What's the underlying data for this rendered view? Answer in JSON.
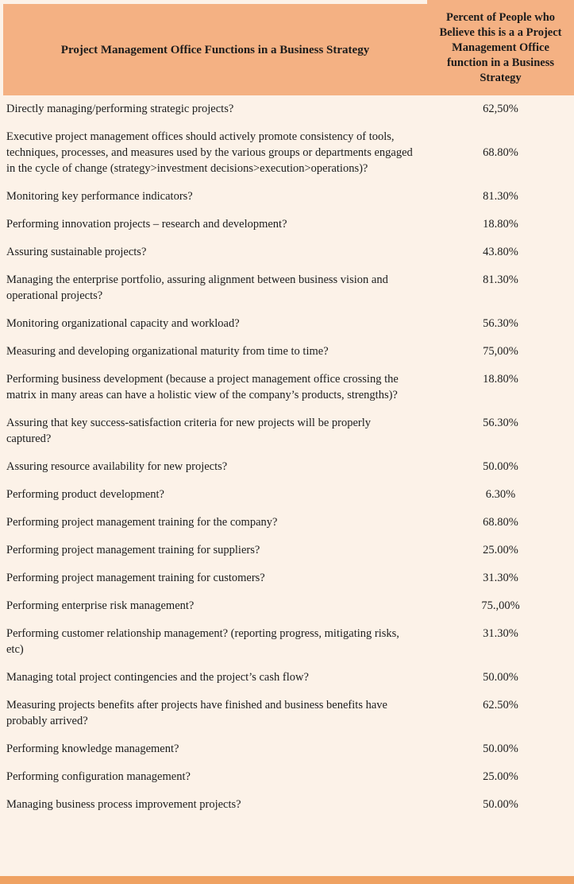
{
  "chart_data": {
    "type": "table",
    "columns": [
      "Project Management Office Functions in a Business Strategy",
      "Percent of People who Believe this is a a Project Management Office function in a Business Strategy"
    ],
    "rows": [
      [
        "Directly managing/performing strategic projects?",
        "62,50%"
      ],
      [
        "Executive project management offices should actively promote consistency of tools, techniques, processes, and measures used by the various groups or departments engaged in the cycle of change (strategy>investment decisions>execution>operations)?",
        "68.80%"
      ],
      [
        "Monitoring key performance indicators?",
        "81.30%"
      ],
      [
        "Performing innovation projects – research and development?",
        "18.80%"
      ],
      [
        "Assuring sustainable projects?",
        "43.80%"
      ],
      [
        "Managing the enterprise portfolio, assuring alignment between business vision and operational projects?",
        "81.30%"
      ],
      [
        "Monitoring organizational capacity and workload?",
        "56.30%"
      ],
      [
        "Measuring and developing organizational maturity from time to time?",
        "75,00%"
      ],
      [
        "Performing business development (because a project management office crossing the matrix in many areas can have a holistic view of the company’s products, strengths)?",
        "18.80%"
      ],
      [
        "Assuring that key success-satisfaction criteria for new projects will be properly captured?",
        "56.30%"
      ],
      [
        "Assuring resource availability for new projects?",
        "50.00%"
      ],
      [
        "Performing product development?",
        "6.30%"
      ],
      [
        "Performing project management training for the company?",
        "68.80%"
      ],
      [
        "Performing project management training for suppliers?",
        "25.00%"
      ],
      [
        "Performing project management training for customers?",
        "31.30%"
      ],
      [
        "Performing enterprise risk management?",
        "75.,00%"
      ],
      [
        "Performing customer relationship management? (reporting progress, mitigating risks, etc)",
        "31.30%"
      ],
      [
        "Managing total project contingencies and the project’s cash flow?",
        "50.00%"
      ],
      [
        "Measuring projects benefits after projects have finished and business benefits have probably arrived?",
        "62.50%"
      ],
      [
        "Performing knowledge management?",
        "50.00%"
      ],
      [
        "Performing configuration management?",
        "25.00%"
      ],
      [
        "Managing business process improvement projects?",
        "50.00%"
      ]
    ]
  },
  "colors": {
    "header_bg": "#F4B183",
    "body_bg": "#FCF2E8",
    "footer_bar": "#EFA263",
    "text": "#1C1C1C"
  }
}
